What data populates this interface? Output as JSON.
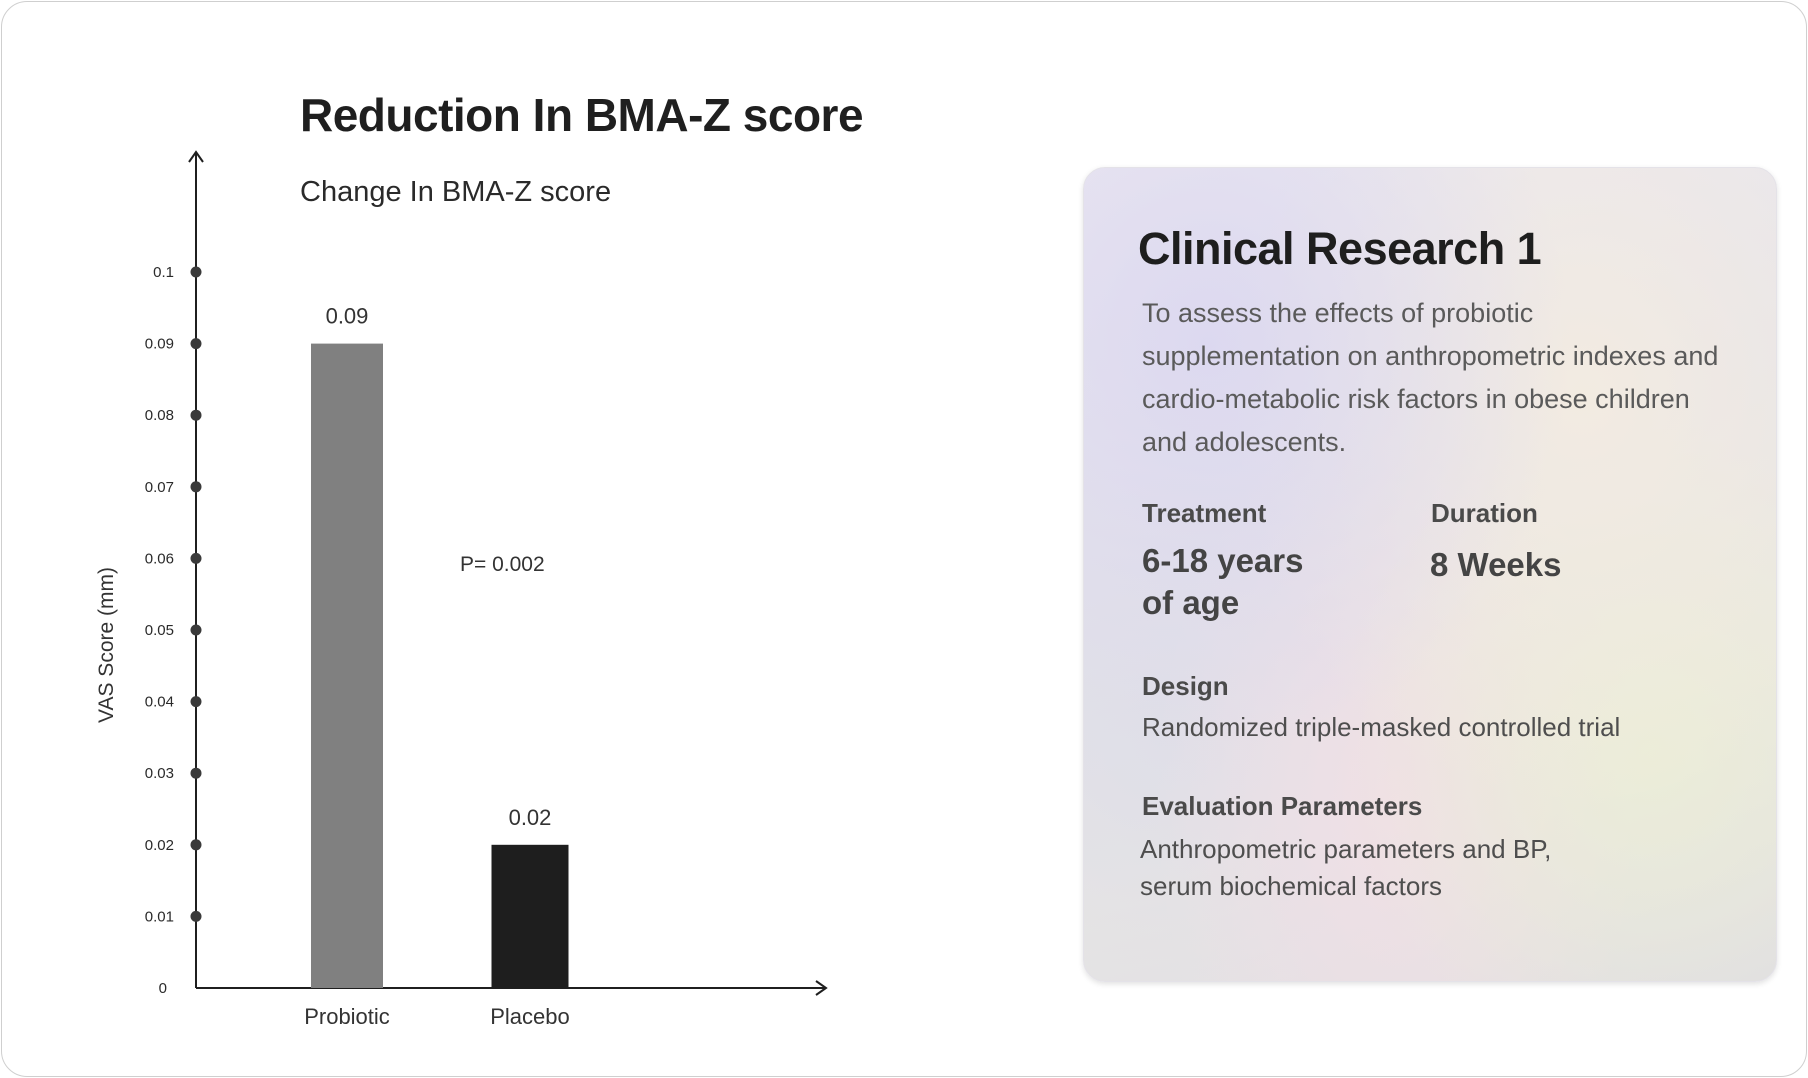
{
  "chart_data": {
    "type": "bar",
    "title": "Reduction In BMA-Z score",
    "subtitle": "Change In BMA-Z score",
    "ylabel": "VAS Score (mm)",
    "xlabel": "",
    "ylim": [
      0,
      0.1
    ],
    "yticks": [
      "0",
      "0.01",
      "0.02",
      "0.03",
      "0.04",
      "0.05",
      "0.06",
      "0.07",
      "0.08",
      "0.09",
      "0.1"
    ],
    "categories": [
      "Probiotic",
      "Placebo"
    ],
    "values": [
      0.09,
      0.02
    ],
    "data_labels": [
      "0.09",
      "0.02"
    ],
    "colors": [
      "#808080",
      "#1e1e1e"
    ],
    "annotation": "P= 0.002",
    "grid": false,
    "legend": "none"
  },
  "card": {
    "title": "Clinical Research 1",
    "description": "To assess the effects of probiotic supplementation on anthropometric indexes and cardio-metabolic risk factors in obese children and adolescents.",
    "treatment_label": "Treatment",
    "treatment_value_line1": "6-18 years",
    "treatment_value_line2": "of age",
    "duration_label": "Duration",
    "duration_value": "8 Weeks",
    "design_label": "Design",
    "design_value": "Randomized triple-masked controlled trial",
    "evaluation_label": "Evaluation Parameters",
    "evaluation_value_line1": "Anthropometric parameters and BP,",
    "evaluation_value_line2": "serum biochemical factors"
  }
}
